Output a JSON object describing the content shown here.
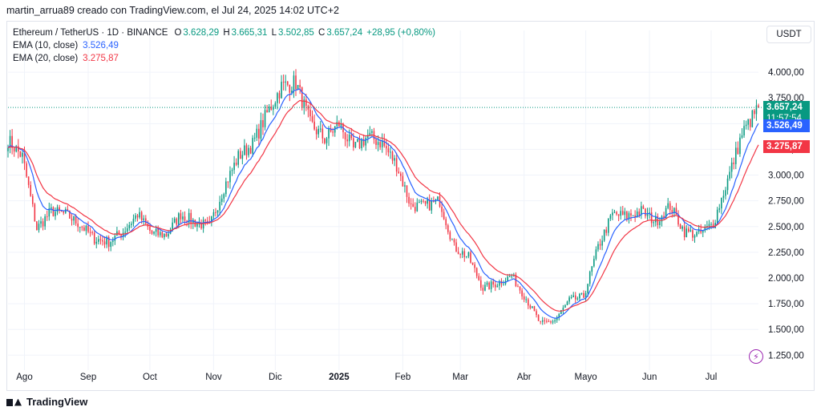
{
  "caption": "martin_arrua89 creado con TradingView.com, el Jul 24, 2025 14:02 UTC+2",
  "legend": {
    "symbol": "Ethereum / TetherUS · 1D · BINANCE",
    "open_label": "O",
    "open": "3.628,29",
    "high_label": "H",
    "high": "3.665,31",
    "low_label": "L",
    "low": "3.502,85",
    "close_label": "C",
    "close": "3.657,24",
    "change": "+28,95 (+0,80%)",
    "ema10_label": "EMA (10, close)",
    "ema10_value": "3.526,49",
    "ema20_label": "EMA (20, close)",
    "ema20_value": "3.275,87"
  },
  "currency_button": "USDT",
  "brand": "TradingView",
  "colors": {
    "up": "#089981",
    "down": "#f23645",
    "ema10": "#2962ff",
    "ema20": "#f23645",
    "grid": "#f0f3fa",
    "last_price_line": "#089981"
  },
  "price_tags": {
    "last_price": "3.657,24",
    "countdown": "11:57:54",
    "ema10": "3.526,49",
    "ema20": "3.275,87"
  },
  "chart_data": {
    "type": "candlestick",
    "ylim": [
      1120,
      4250
    ],
    "y_ticks": [
      1250,
      1500,
      1750,
      2000,
      2250,
      2500,
      2750,
      3000,
      3250,
      3500,
      3750,
      4000
    ],
    "y_tick_labels": [
      "1.250,00",
      "1.500,00",
      "1.750,00",
      "2.000,00",
      "2.250,00",
      "2.500,00",
      "2.750,00",
      "3.000,00",
      "3.250,00",
      "3.500,00",
      "3.750,00",
      "4.000,00"
    ],
    "x_ticks": [
      {
        "label": "Ago",
        "month": "2024-08",
        "bold": false
      },
      {
        "label": "Sep",
        "month": "2024-09",
        "bold": false
      },
      {
        "label": "Oct",
        "month": "2024-10",
        "bold": false
      },
      {
        "label": "Nov",
        "month": "2024-11",
        "bold": false
      },
      {
        "label": "Dic",
        "month": "2024-12",
        "bold": false
      },
      {
        "label": "2025",
        "month": "2025-01",
        "bold": true
      },
      {
        "label": "Feb",
        "month": "2025-02",
        "bold": false
      },
      {
        "label": "Mar",
        "month": "2025-03",
        "bold": false
      },
      {
        "label": "Abr",
        "month": "2025-04",
        "bold": false
      },
      {
        "label": "Mayo",
        "month": "2025-05",
        "bold": false
      },
      {
        "label": "Jun",
        "month": "2025-06",
        "bold": false
      },
      {
        "label": "Jul",
        "month": "2025-07",
        "bold": false
      }
    ],
    "last_close": 3657.24,
    "ema10_last": 3526.49,
    "ema20_last": 3275.87,
    "weekly_closes": [
      {
        "date": "2024-07-24",
        "close": 3340
      },
      {
        "date": "2024-07-31",
        "close": 3180
      },
      {
        "date": "2024-08-07",
        "close": 2480
      },
      {
        "date": "2024-08-14",
        "close": 2650
      },
      {
        "date": "2024-08-21",
        "close": 2620
      },
      {
        "date": "2024-08-28",
        "close": 2520
      },
      {
        "date": "2024-09-04",
        "close": 2380
      },
      {
        "date": "2024-09-11",
        "close": 2350
      },
      {
        "date": "2024-09-18",
        "close": 2450
      },
      {
        "date": "2024-09-25",
        "close": 2620
      },
      {
        "date": "2024-10-02",
        "close": 2430
      },
      {
        "date": "2024-10-09",
        "close": 2420
      },
      {
        "date": "2024-10-16",
        "close": 2620
      },
      {
        "date": "2024-10-23",
        "close": 2540
      },
      {
        "date": "2024-10-30",
        "close": 2500
      },
      {
        "date": "2024-11-06",
        "close": 2880
      },
      {
        "date": "2024-11-13",
        "close": 3180
      },
      {
        "date": "2024-11-20",
        "close": 3300
      },
      {
        "date": "2024-11-27",
        "close": 3600
      },
      {
        "date": "2024-12-04",
        "close": 3860
      },
      {
        "date": "2024-12-11",
        "close": 3900
      },
      {
        "date": "2024-12-18",
        "close": 3500
      },
      {
        "date": "2024-12-25",
        "close": 3350
      },
      {
        "date": "2025-01-01",
        "close": 3500
      },
      {
        "date": "2025-01-08",
        "close": 3250
      },
      {
        "date": "2025-01-15",
        "close": 3380
      },
      {
        "date": "2025-01-22",
        "close": 3310
      },
      {
        "date": "2025-01-29",
        "close": 3100
      },
      {
        "date": "2025-02-05",
        "close": 2700
      },
      {
        "date": "2025-02-12",
        "close": 2700
      },
      {
        "date": "2025-02-19",
        "close": 2750
      },
      {
        "date": "2025-02-26",
        "close": 2300
      },
      {
        "date": "2025-03-05",
        "close": 2200
      },
      {
        "date": "2025-03-12",
        "close": 1900
      },
      {
        "date": "2025-03-19",
        "close": 1950
      },
      {
        "date": "2025-03-26",
        "close": 2020
      },
      {
        "date": "2025-04-02",
        "close": 1800
      },
      {
        "date": "2025-04-09",
        "close": 1550
      },
      {
        "date": "2025-04-16",
        "close": 1590
      },
      {
        "date": "2025-04-23",
        "close": 1780
      },
      {
        "date": "2025-04-30",
        "close": 1820
      },
      {
        "date": "2025-05-07",
        "close": 2300
      },
      {
        "date": "2025-05-14",
        "close": 2620
      },
      {
        "date": "2025-05-21",
        "close": 2600
      },
      {
        "date": "2025-05-28",
        "close": 2650
      },
      {
        "date": "2025-06-04",
        "close": 2550
      },
      {
        "date": "2025-06-11",
        "close": 2700
      },
      {
        "date": "2025-06-18",
        "close": 2450
      },
      {
        "date": "2025-06-25",
        "close": 2420
      },
      {
        "date": "2025-07-02",
        "close": 2530
      },
      {
        "date": "2025-07-09",
        "close": 2950
      },
      {
        "date": "2025-07-16",
        "close": 3400
      },
      {
        "date": "2025-07-24",
        "close": 3657.24
      }
    ]
  }
}
